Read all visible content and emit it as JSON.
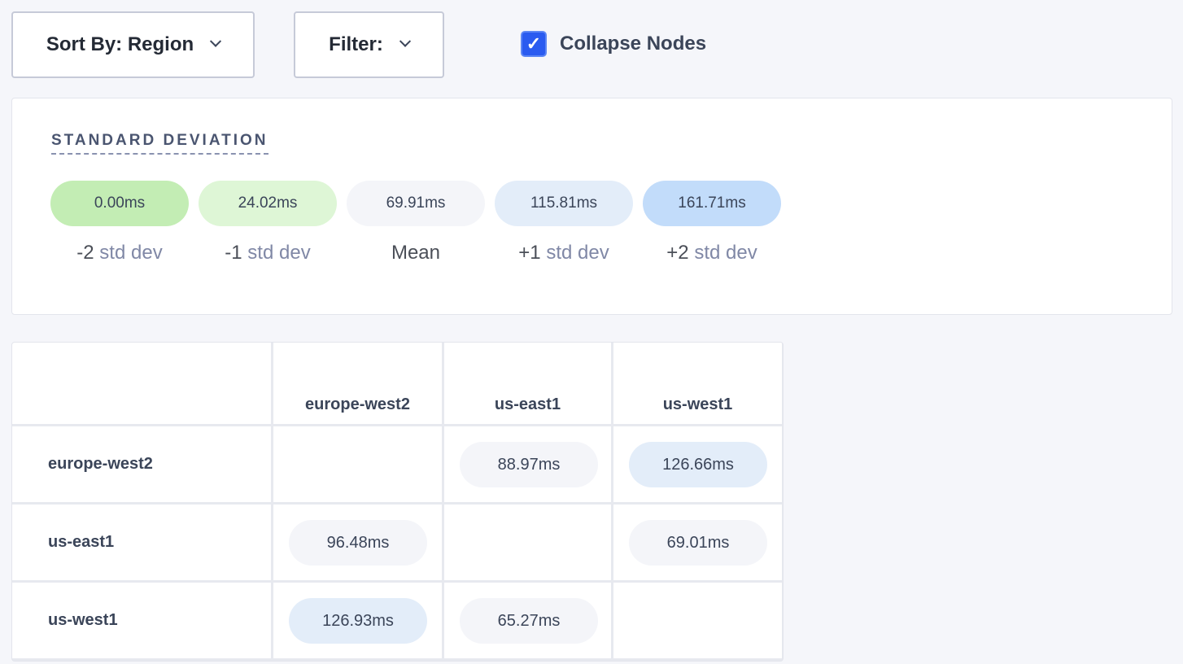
{
  "toolbar": {
    "sort_label": "Sort By: Region",
    "filter_label": "Filter:",
    "collapse_label": "Collapse Nodes",
    "collapse_checked": true
  },
  "legend": {
    "title": "STANDARD DEVIATION",
    "items": [
      {
        "value": "0.00ms",
        "prefix": "-2",
        "label": " std dev",
        "color": "#c3edb4"
      },
      {
        "value": "24.02ms",
        "prefix": "-1",
        "label": " std dev",
        "color": "#def6d6"
      },
      {
        "value": "69.91ms",
        "prefix": "Mean",
        "label": "",
        "color": "#f4f5f9"
      },
      {
        "value": "115.81ms",
        "prefix": "+1",
        "label": " std dev",
        "color": "#e3edf9"
      },
      {
        "value": "161.71ms",
        "prefix": "+2",
        "label": " std dev",
        "color": "#c2dcfa"
      }
    ]
  },
  "matrix": {
    "columns": [
      "europe-west2",
      "us-east1",
      "us-west1"
    ],
    "rows": [
      {
        "name": "europe-west2",
        "cells": [
          "",
          "88.97ms",
          "126.66ms"
        ],
        "colors": [
          "",
          "#f4f5f9",
          "#e3edf9"
        ]
      },
      {
        "name": "us-east1",
        "cells": [
          "96.48ms",
          "",
          "69.01ms"
        ],
        "colors": [
          "#f4f5f9",
          "",
          "#f4f5f9"
        ]
      },
      {
        "name": "us-west1",
        "cells": [
          "126.93ms",
          "65.27ms",
          ""
        ],
        "colors": [
          "#e3edf9",
          "#f4f5f9",
          ""
        ]
      }
    ]
  }
}
